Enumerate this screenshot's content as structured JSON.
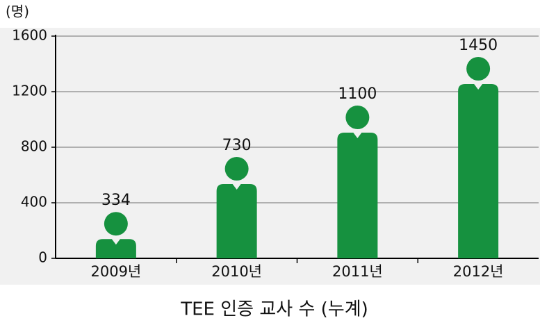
{
  "chart_data": {
    "type": "pictogram-bar",
    "title": "TEE 인증 교사 수 (누계)",
    "y_unit": "(명)",
    "categories": [
      "2009년",
      "2010년",
      "2011년",
      "2012년"
    ],
    "values": [
      334,
      730,
      1100,
      1450
    ],
    "color": "#16913f",
    "ylim": [
      0,
      1600
    ],
    "yticks": [
      0,
      400,
      800,
      1200,
      1600
    ],
    "grid": true
  }
}
